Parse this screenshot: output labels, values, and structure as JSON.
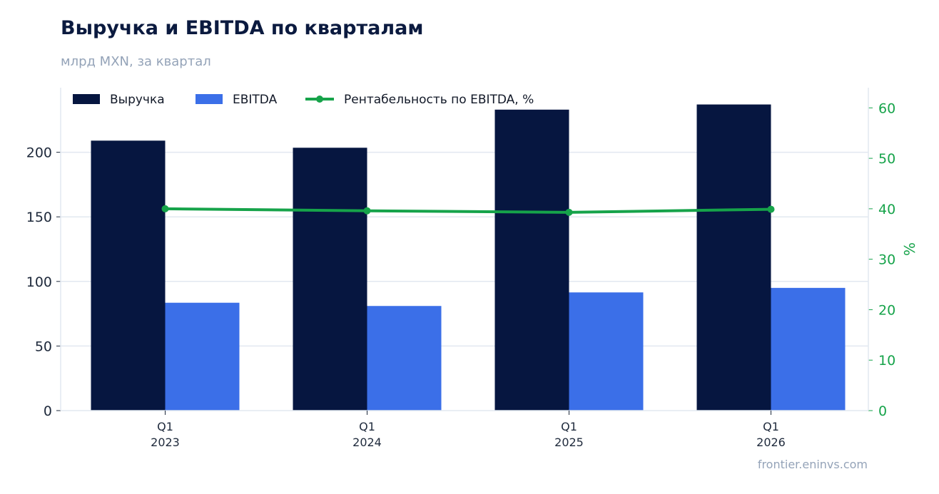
{
  "header": {
    "title": "Выручка и EBITDA по кварталам",
    "subtitle": "млрд MXN, за квартал"
  },
  "footer": {
    "watermark": "frontier.eninvs.com"
  },
  "colors": {
    "revenue": "#061640",
    "ebitda": "#3b6fe8",
    "margin": "#16a34a",
    "grid": "#e2e8f0",
    "axis_text": "#1e293b",
    "right_axis_text": "#16a34a"
  },
  "chart_data": {
    "type": "bar",
    "categories": [
      [
        "Q1",
        "2023"
      ],
      [
        "Q1",
        "2024"
      ],
      [
        "Q1",
        "2025"
      ],
      [
        "Q1",
        "2026"
      ]
    ],
    "series": [
      {
        "name": "Выручка",
        "type": "bar",
        "axis": "left",
        "values": [
          209,
          203.5,
          233,
          237
        ]
      },
      {
        "name": "EBITDA",
        "type": "bar",
        "axis": "left",
        "values": [
          83.5,
          81,
          91.5,
          95
        ]
      },
      {
        "name": "Рентабельность по EBITDA, %",
        "type": "line",
        "axis": "right",
        "values": [
          40,
          39.6,
          39.3,
          39.9
        ]
      }
    ],
    "y_left": {
      "min": 0,
      "max": 250,
      "ticks": [
        0,
        50,
        100,
        150,
        200
      ]
    },
    "y_right": {
      "min": 0,
      "max": 64,
      "label": "%",
      "ticks": [
        0,
        10,
        20,
        30,
        40,
        50,
        60
      ]
    },
    "legend_position": "top-left",
    "grid": true
  }
}
